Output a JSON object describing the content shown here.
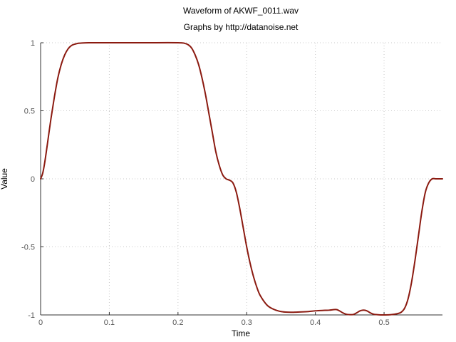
{
  "chart_data": {
    "type": "line",
    "title": "Waveform of AKWF_0011.wav",
    "subtitle": "Graphs by http://datanoise.net",
    "xlabel": "Time",
    "ylabel": "Value",
    "xlim": [
      0,
      0.585
    ],
    "ylim": [
      -1,
      1
    ],
    "grid": true,
    "x_ticks": [
      {
        "value": 0,
        "label": "0"
      },
      {
        "value": 0.1,
        "label": "0.1"
      },
      {
        "value": 0.2,
        "label": "0.2"
      },
      {
        "value": 0.3,
        "label": "0.3"
      },
      {
        "value": 0.4,
        "label": "0.4"
      },
      {
        "value": 0.5,
        "label": "0.5"
      }
    ],
    "y_ticks": [
      {
        "value": 1,
        "label": "1"
      },
      {
        "value": 0.5,
        "label": "0.5"
      },
      {
        "value": 0,
        "label": "0"
      },
      {
        "value": -0.5,
        "label": "-0.5"
      },
      {
        "value": -1,
        "label": "-1"
      }
    ],
    "series": [
      {
        "name": "AKWF_0011",
        "color": "#8b1a10",
        "x": [
          0,
          0.003,
          0.006,
          0.01,
          0.015,
          0.02,
          0.025,
          0.03,
          0.035,
          0.04,
          0.045,
          0.05,
          0.055,
          0.06,
          0.07,
          0.08,
          0.1,
          0.15,
          0.2,
          0.21,
          0.215,
          0.22,
          0.225,
          0.23,
          0.235,
          0.24,
          0.245,
          0.25,
          0.255,
          0.26,
          0.265,
          0.27,
          0.275,
          0.28,
          0.285,
          0.29,
          0.295,
          0.3,
          0.305,
          0.31,
          0.315,
          0.32,
          0.33,
          0.34,
          0.35,
          0.36,
          0.37,
          0.38,
          0.39,
          0.4,
          0.41,
          0.42,
          0.43,
          0.435,
          0.44,
          0.445,
          0.45,
          0.455,
          0.46,
          0.465,
          0.47,
          0.475,
          0.48,
          0.485,
          0.49,
          0.495,
          0.5,
          0.51,
          0.52,
          0.525,
          0.53,
          0.535,
          0.54,
          0.545,
          0.55,
          0.555,
          0.56,
          0.565,
          0.57,
          0.575,
          0.58,
          0.585
        ],
        "y": [
          0,
          0.04,
          0.12,
          0.26,
          0.44,
          0.6,
          0.74,
          0.84,
          0.91,
          0.955,
          0.98,
          0.99,
          0.996,
          0.998,
          1.0,
          1.0,
          1.0,
          1.0,
          1.0,
          0.995,
          0.985,
          0.96,
          0.91,
          0.84,
          0.74,
          0.62,
          0.48,
          0.34,
          0.2,
          0.1,
          0.03,
          0.0,
          -0.01,
          -0.03,
          -0.1,
          -0.22,
          -0.36,
          -0.5,
          -0.62,
          -0.72,
          -0.8,
          -0.86,
          -0.93,
          -0.96,
          -0.975,
          -0.98,
          -0.98,
          -0.978,
          -0.975,
          -0.97,
          -0.967,
          -0.965,
          -0.96,
          -0.97,
          -0.985,
          -0.995,
          -0.998,
          -0.997,
          -0.985,
          -0.97,
          -0.965,
          -0.97,
          -0.985,
          -0.995,
          -0.998,
          -1.0,
          -1.0,
          -0.998,
          -0.99,
          -0.98,
          -0.95,
          -0.88,
          -0.76,
          -0.6,
          -0.42,
          -0.24,
          -0.1,
          -0.03,
          0.0,
          0.0,
          0.0,
          0.0
        ]
      }
    ]
  }
}
